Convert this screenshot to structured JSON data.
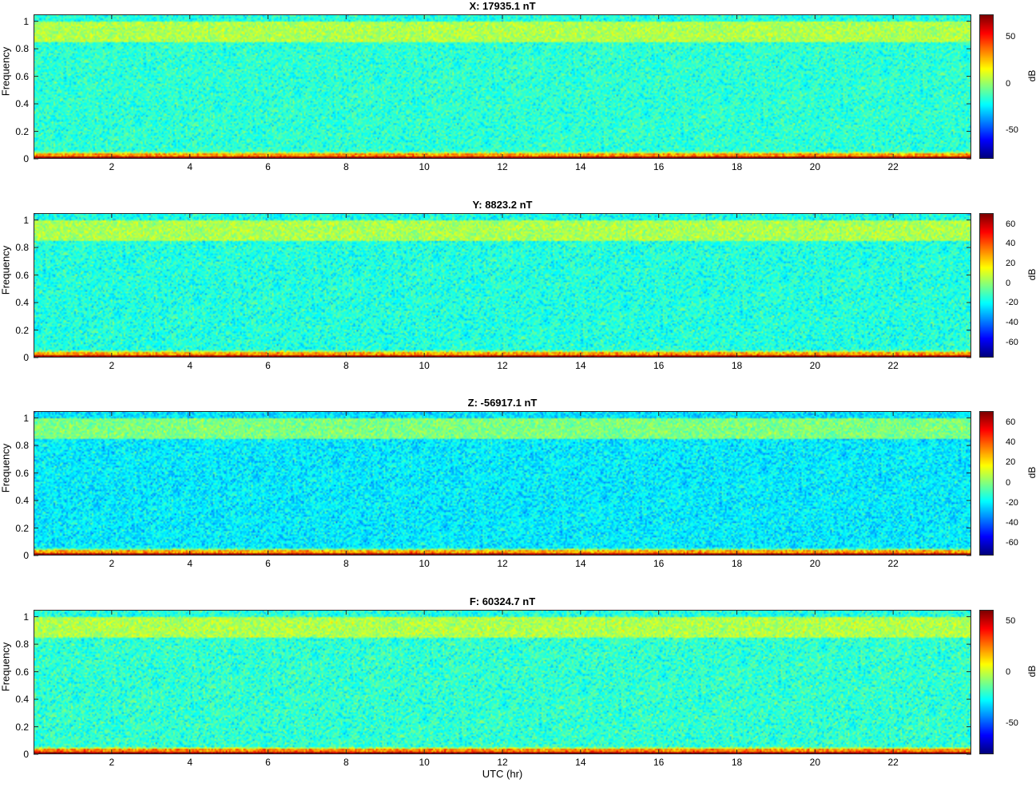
{
  "chart_data": [
    {
      "type": "heatmap",
      "title": "X: 17935.1 nT",
      "ylabel": "Frequency",
      "xlabel": "",
      "colorbar_label": "dB",
      "colormap": "jet",
      "xlim": [
        0,
        24
      ],
      "ylim": [
        0,
        1.05
      ],
      "xticks": [
        2,
        4,
        6,
        8,
        10,
        12,
        14,
        16,
        18,
        20,
        22
      ],
      "yticks": [
        0,
        0.2,
        0.4,
        0.6,
        0.8,
        1
      ],
      "clim": [
        -80,
        75
      ],
      "cbticks": [
        -50,
        0,
        50
      ],
      "background_db": -15,
      "band_db": 5,
      "band_freq": [
        0.85,
        1.0
      ],
      "low_freq_db": 72
    },
    {
      "type": "heatmap",
      "title": "Y: 8823.2 nT",
      "ylabel": "Frequency",
      "xlabel": "",
      "colorbar_label": "dB",
      "colormap": "jet",
      "xlim": [
        0,
        24
      ],
      "ylim": [
        0,
        1.05
      ],
      "xticks": [
        2,
        4,
        6,
        8,
        10,
        12,
        14,
        16,
        18,
        20,
        22
      ],
      "yticks": [
        0,
        0.2,
        0.4,
        0.6,
        0.8,
        1
      ],
      "clim": [
        -75,
        72
      ],
      "cbticks": [
        -60,
        -40,
        -20,
        0,
        20,
        40,
        60
      ],
      "background_db": -15,
      "band_db": 5,
      "band_freq": [
        0.85,
        1.0
      ],
      "low_freq_db": 68
    },
    {
      "type": "heatmap",
      "title": "Z: -56917.1 nT",
      "ylabel": "Frequency",
      "xlabel": "",
      "colorbar_label": "dB",
      "colormap": "jet",
      "xlim": [
        0,
        24
      ],
      "ylim": [
        0,
        1.05
      ],
      "xticks": [
        2,
        4,
        6,
        8,
        10,
        12,
        14,
        16,
        18,
        20,
        22
      ],
      "yticks": [
        0,
        0.2,
        0.4,
        0.6,
        0.8,
        1
      ],
      "clim": [
        -72,
        72
      ],
      "cbticks": [
        -60,
        -40,
        -20,
        0,
        20,
        40,
        60
      ],
      "background_db": -20,
      "band_db": 0,
      "band_freq": [
        0.85,
        1.0
      ],
      "low_freq_db": 68
    },
    {
      "type": "heatmap",
      "title": "F: 60324.7 nT",
      "ylabel": "Frequency",
      "xlabel": "UTC (hr)",
      "colorbar_label": "dB",
      "colormap": "jet",
      "xlim": [
        0,
        24
      ],
      "ylim": [
        0,
        1.05
      ],
      "xticks": [
        2,
        4,
        6,
        8,
        10,
        12,
        14,
        16,
        18,
        20,
        22
      ],
      "yticks": [
        0,
        0.2,
        0.4,
        0.6,
        0.8,
        1
      ],
      "clim": [
        -80,
        62
      ],
      "cbticks": [
        -50,
        0,
        50
      ],
      "background_db": -20,
      "band_db": -2,
      "band_freq": [
        0.85,
        1.0
      ],
      "low_freq_db": 58
    }
  ]
}
